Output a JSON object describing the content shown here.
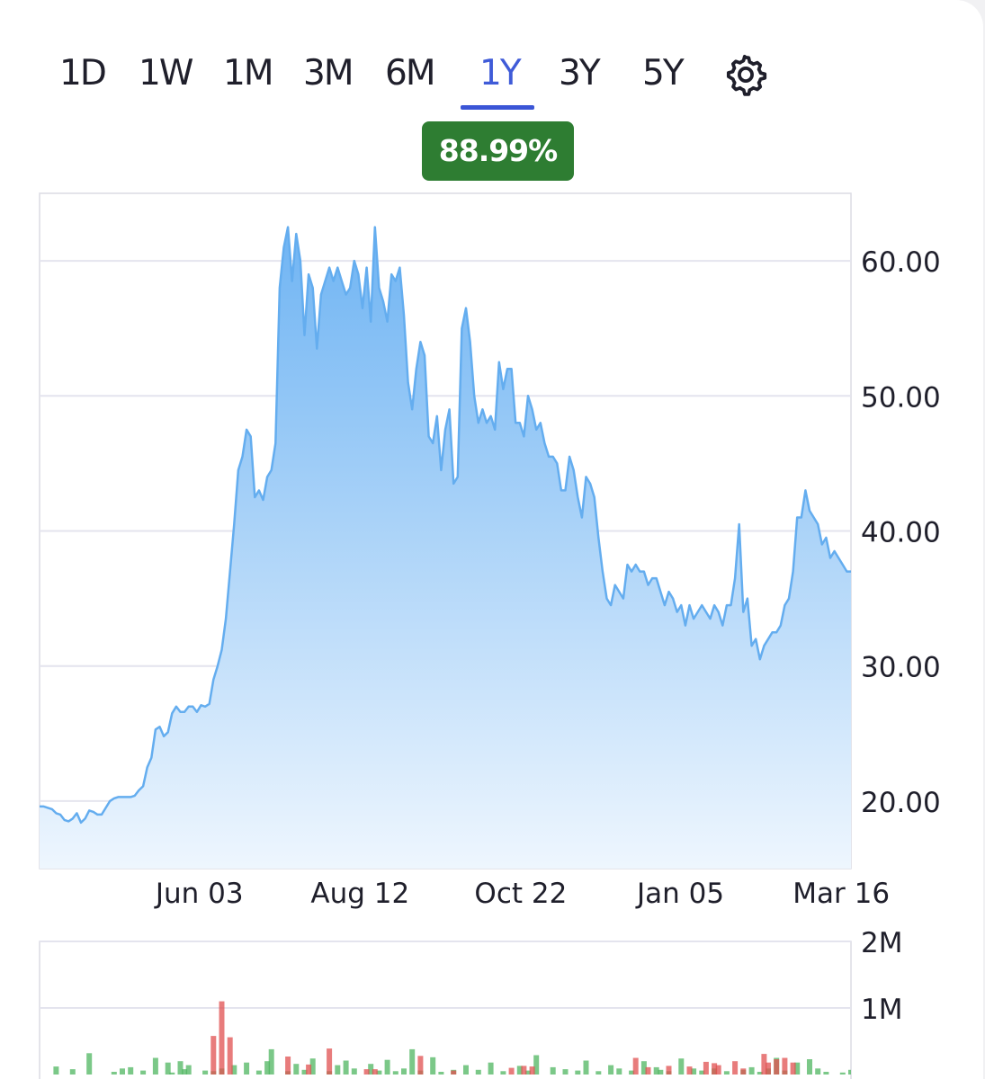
{
  "tabs": [
    {
      "label": "1D",
      "active": false
    },
    {
      "label": "1W",
      "active": false
    },
    {
      "label": "1M",
      "active": false
    },
    {
      "label": "3M",
      "active": false
    },
    {
      "label": "6M",
      "active": false
    },
    {
      "label": "1Y",
      "active": true
    },
    {
      "label": "3Y",
      "active": false
    },
    {
      "label": "5Y",
      "active": false
    }
  ],
  "settings_icon": "gear-icon",
  "change_badge": {
    "value": "88.99%",
    "color": "#2e7d32"
  },
  "chart_data": [
    {
      "type": "area",
      "title": "",
      "xlabel": "",
      "ylabel": "",
      "x_ticks": [
        "Jun 03",
        "Aug 12",
        "Oct 22",
        "Jan 05",
        "Mar 16"
      ],
      "y_ticks": [
        "20.00",
        "30.00",
        "40.00",
        "50.00",
        "60.00"
      ],
      "ylim": [
        15,
        65
      ],
      "grid": true,
      "line_color": "#64adef",
      "fill_color": "#7bbcf6",
      "series": [
        {
          "values": [
            19.6,
            19.6,
            19.5,
            19.4,
            19.1,
            19.0,
            18.6,
            18.5,
            18.7,
            19.1,
            18.4,
            18.7,
            19.3,
            19.2,
            19.0,
            19.0,
            19.5,
            20.0,
            20.2,
            20.3,
            20.3,
            20.3,
            20.3,
            20.4,
            20.8,
            21.1,
            22.5,
            23.2,
            25.3,
            25.5,
            24.8,
            25.1,
            26.5,
            27.0,
            26.6,
            26.6,
            27.0,
            27.0,
            26.6,
            27.1,
            27.0,
            27.2,
            29.0,
            30.0,
            31.2,
            33.5,
            37.0,
            40.5,
            44.5,
            45.5,
            47.5,
            47.0,
            42.5,
            43.0,
            42.3,
            44.0,
            44.5,
            46.5,
            58.0,
            61.0,
            62.5,
            58.5,
            62.0,
            60.0,
            54.5,
            59.0,
            58.0,
            53.5,
            57.5,
            58.5,
            59.5,
            58.5,
            59.5,
            58.5,
            57.5,
            58.0,
            60.0,
            59.0,
            56.5,
            59.5,
            55.5,
            62.5,
            58.0,
            57.0,
            55.5,
            59.0,
            58.5,
            59.5,
            56.0,
            51.0,
            49.0,
            52.0,
            54.0,
            53.0,
            47.0,
            46.5,
            48.5,
            44.5,
            47.5,
            49.0,
            43.5,
            44.0,
            55.0,
            56.5,
            54.0,
            50.0,
            48.0,
            49.0,
            48.0,
            48.5,
            47.5,
            52.5,
            50.5,
            52.0,
            52.0,
            48.0,
            48.0,
            47.0,
            50.0,
            49.0,
            47.5,
            48.0,
            46.5,
            45.5,
            45.5,
            45.0,
            43.0,
            43.0,
            45.5,
            44.5,
            42.5,
            41.0,
            44.0,
            43.5,
            42.5,
            39.5,
            37.0,
            35.0,
            34.5,
            36.0,
            35.5,
            35.0,
            37.5,
            37.0,
            37.5,
            37.0,
            37.0,
            36.0,
            36.5,
            36.5,
            35.5,
            34.5,
            35.5,
            35.0,
            34.0,
            34.5,
            33.0,
            34.5,
            33.5,
            34.0,
            34.5,
            34.0,
            33.5,
            34.5,
            34.0,
            33.0,
            34.5,
            34.5,
            36.5,
            40.5,
            34.0,
            35.0,
            31.5,
            32.0,
            30.5,
            31.5,
            32.0,
            32.5,
            32.5,
            33.0,
            34.5,
            35.0,
            37.0,
            41.0,
            41.0,
            43.0,
            41.5,
            41.0,
            40.5,
            39.0,
            39.5,
            38.0,
            38.5,
            38.0,
            37.5,
            37.0,
            37.0
          ]
        }
      ]
    },
    {
      "type": "bar",
      "title": "",
      "xlabel": "",
      "ylabel": "",
      "y_ticks": [
        "1M",
        "2M"
      ],
      "ylim": [
        0,
        2000000
      ],
      "up_color": "#4fb560",
      "down_color": "#e05050",
      "series": [
        {
          "name": "",
          "x_index": [
            4,
            8,
            12,
            18,
            20,
            22,
            25,
            28,
            31,
            32,
            34,
            35,
            36,
            40,
            42,
            44,
            47,
            50,
            53,
            55,
            56,
            60,
            62,
            64,
            66,
            70,
            72,
            74,
            76,
            80,
            82,
            84,
            86,
            88,
            90,
            92,
            95,
            97,
            100,
            103,
            106,
            109,
            112,
            116,
            118,
            120,
            124,
            127,
            130,
            132,
            135,
            138,
            140,
            143,
            146,
            149,
            150,
            152,
            155,
            158,
            160,
            163,
            166,
            170,
            172,
            174,
            176,
            178,
            180,
            183,
            186,
            188,
            190,
            194,
            196,
            200,
            203,
            205
          ],
          "values": [
            120000,
            80000,
            320000,
            40000,
            90000,
            110000,
            60000,
            250000,
            180000,
            30000,
            200000,
            80000,
            140000,
            60000,
            50000,
            90000,
            140000,
            180000,
            60000,
            200000,
            380000,
            50000,
            160000,
            70000,
            240000,
            50000,
            140000,
            210000,
            90000,
            160000,
            60000,
            220000,
            50000,
            90000,
            380000,
            60000,
            260000,
            40000,
            70000,
            140000,
            70000,
            180000,
            50000,
            130000,
            60000,
            290000,
            110000,
            80000,
            60000,
            210000,
            50000,
            140000,
            90000,
            60000,
            200000,
            110000,
            70000,
            50000,
            240000,
            90000,
            60000,
            90000,
            50000,
            70000,
            110000,
            40000,
            90000,
            250000,
            60000,
            180000,
            230000,
            90000,
            40000,
            30000,
            70000,
            350000,
            60000,
            40000
          ]
        },
        {
          "name": "",
          "x_index": [
            42,
            44,
            46,
            60,
            65,
            70,
            79,
            81,
            92,
            100,
            114,
            117,
            119,
            144,
            147,
            152,
            157,
            161,
            163,
            164,
            168,
            170,
            175,
            176,
            178,
            180,
            182
          ],
          "values": [
            580000,
            1100000,
            560000,
            270000,
            150000,
            390000,
            80000,
            80000,
            280000,
            60000,
            100000,
            130000,
            120000,
            250000,
            110000,
            130000,
            120000,
            190000,
            170000,
            140000,
            200000,
            90000,
            310000,
            180000,
            230000,
            250000,
            180000
          ]
        }
      ]
    }
  ]
}
